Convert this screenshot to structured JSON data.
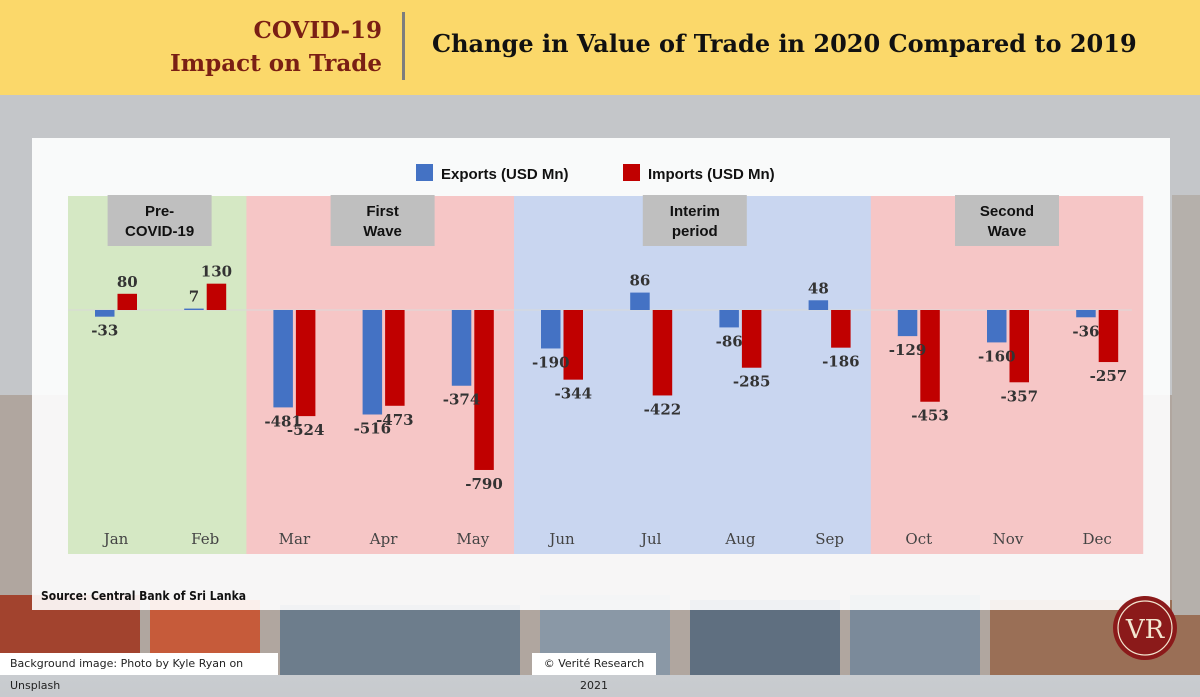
{
  "header": {
    "left_line1": "COVID-19",
    "left_line2": "Impact on Trade",
    "title": "Change in Value of Trade in 2020 Compared to 2019"
  },
  "source": "Source: Central Bank of Sri Lanka",
  "footer": {
    "credit": "Background image: Photo by Kyle Ryan on Unsplash",
    "copyright": "© Verité Research 2021"
  },
  "logo": {
    "text": "VR"
  },
  "colors": {
    "exports": "#4472c4",
    "imports": "#c00000",
    "header_bg": "#fbd86a",
    "header_text": "#7a1f14"
  },
  "chart_data": {
    "type": "bar",
    "categories": [
      "Jan",
      "Feb",
      "Mar",
      "Apr",
      "May",
      "Jun",
      "Jul",
      "Aug",
      "Sep",
      "Oct",
      "Nov",
      "Dec"
    ],
    "series": [
      {
        "name": "Exports (USD Mn)",
        "values": [
          -33,
          7,
          -481,
          -516,
          -374,
          -190,
          86,
          -86,
          48,
          -129,
          -160,
          -36
        ]
      },
      {
        "name": "Imports (USD Mn)",
        "values": [
          80,
          130,
          -524,
          -473,
          -790,
          -344,
          -422,
          -285,
          -186,
          -453,
          -357,
          -257
        ]
      }
    ],
    "legend_position": "top-center",
    "grid": false,
    "phases": [
      {
        "label_line1": "Pre-",
        "label_line2": "COVID-19",
        "start": 0,
        "end": 1,
        "color": "#d5e8c4"
      },
      {
        "label_line1": "First",
        "label_line2": "Wave",
        "start": 2,
        "end": 4,
        "color": "#f6c6c6"
      },
      {
        "label_line1": "Interim",
        "label_line2": "period",
        "start": 5,
        "end": 8,
        "color": "#c9d6f0"
      },
      {
        "label_line1": "Second",
        "label_line2": "Wave",
        "start": 9,
        "end": 11,
        "color": "#f6c6c6"
      }
    ]
  }
}
